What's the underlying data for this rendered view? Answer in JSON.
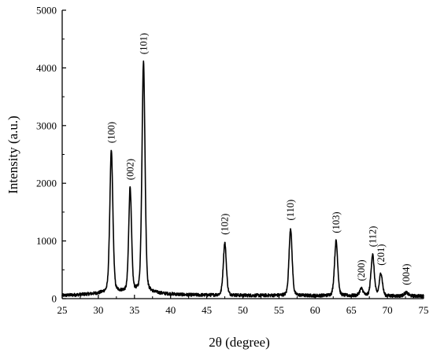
{
  "chart_data": {
    "type": "line",
    "title": "",
    "xlabel": "2θ (degree)",
    "ylabel": "Intensity (a.u.)",
    "xlim": [
      25,
      75
    ],
    "ylim": [
      0,
      5000
    ],
    "xticks": [
      25,
      30,
      35,
      40,
      45,
      50,
      55,
      60,
      65,
      70,
      75
    ],
    "yticks": [
      0,
      1000,
      2000,
      3000,
      4000,
      5000
    ],
    "grid": false,
    "legend": "none",
    "line_color": "#000000",
    "baseline": [
      [
        25,
        55
      ],
      [
        27,
        65
      ],
      [
        29,
        80
      ],
      [
        30,
        90
      ],
      [
        31,
        110
      ],
      [
        33,
        120
      ],
      [
        35,
        125
      ],
      [
        37,
        110
      ],
      [
        39,
        85
      ],
      [
        42,
        65
      ],
      [
        45,
        60
      ],
      [
        50,
        55
      ],
      [
        55,
        55
      ],
      [
        60,
        50
      ],
      [
        65,
        50
      ],
      [
        70,
        45
      ],
      [
        75,
        45
      ]
    ],
    "peaks": [
      {
        "label": "(100)",
        "x": 31.8,
        "y": 2560,
        "width": 0.22
      },
      {
        "label": "(002)",
        "x": 34.4,
        "y": 1920,
        "width": 0.2
      },
      {
        "label": "(101)",
        "x": 36.25,
        "y": 4100,
        "width": 0.22
      },
      {
        "label": "(102)",
        "x": 47.5,
        "y": 970,
        "width": 0.22
      },
      {
        "label": "(110)",
        "x": 56.6,
        "y": 1220,
        "width": 0.22
      },
      {
        "label": "(103)",
        "x": 62.9,
        "y": 1000,
        "width": 0.23
      },
      {
        "label": "(200)",
        "x": 66.4,
        "y": 170,
        "width": 0.25
      },
      {
        "label": "(112)",
        "x": 67.95,
        "y": 760,
        "width": 0.23
      },
      {
        "label": "(201)",
        "x": 69.1,
        "y": 440,
        "width": 0.22
      },
      {
        "label": "(004)",
        "x": 72.6,
        "y": 100,
        "width": 0.3
      }
    ]
  }
}
